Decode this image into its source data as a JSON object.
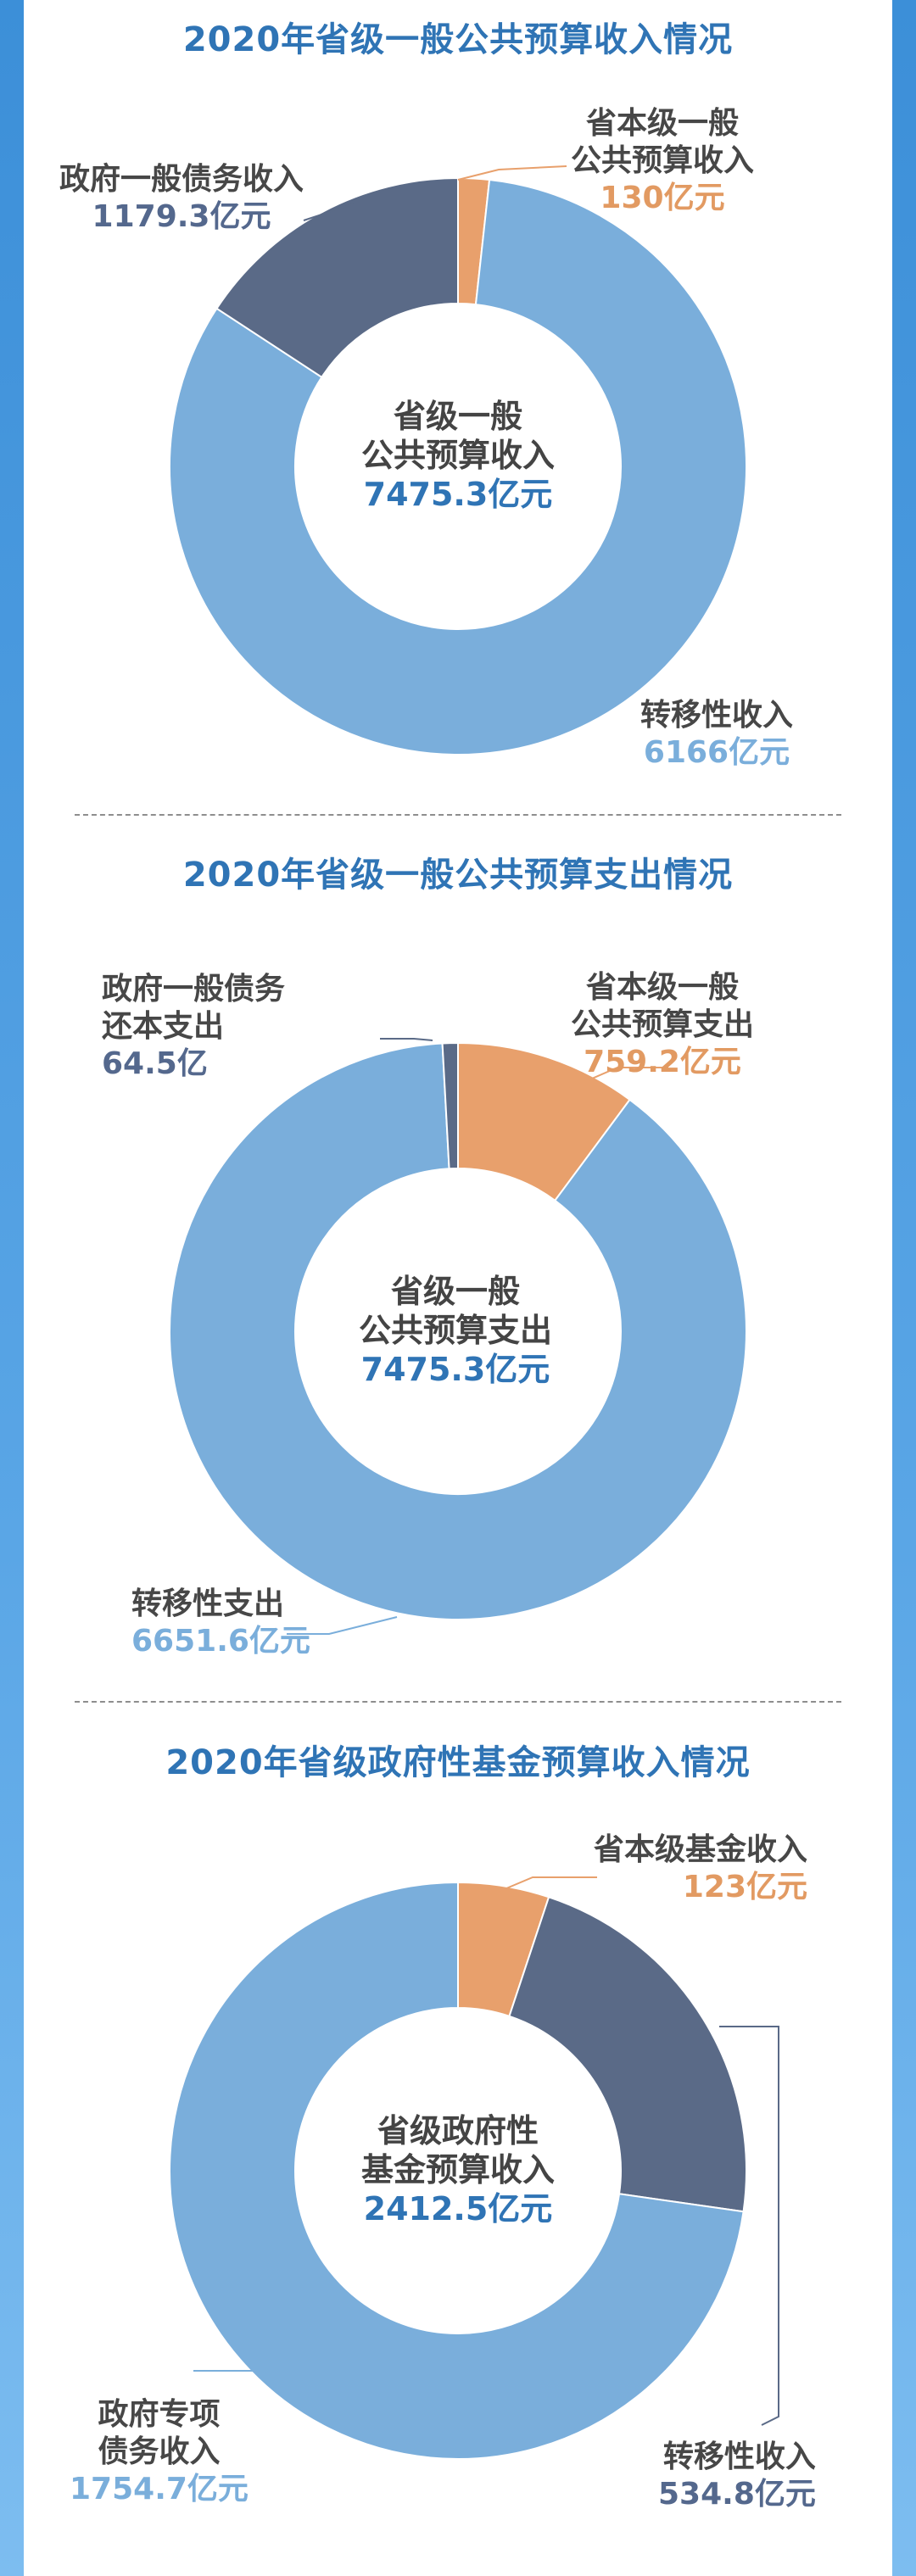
{
  "colors": {
    "province_level": "#e8a06c",
    "debt": "#5a6a87",
    "transfer": "#7aaedb",
    "title": "#2f74b5"
  },
  "chart_data": [
    {
      "type": "pie",
      "variant": "donut",
      "title": "2020年省级一般公共预算收入情况",
      "center_label": [
        "省级一般",
        "公共预算收入"
      ],
      "center_value": "7475.3亿元",
      "total": 7475.3,
      "unit": "亿元",
      "slices": [
        {
          "label": "省本级一般公共预算收入",
          "label_lines": [
            "省本级一般",
            "公共预算收入"
          ],
          "value": 130,
          "value_text": "130亿元",
          "color": "#e8a06c"
        },
        {
          "label": "转移性收入",
          "label_lines": [
            "转移性收入"
          ],
          "value": 6166,
          "value_text": "6166亿元",
          "color": "#7aaedb"
        },
        {
          "label": "政府一般债务收入",
          "label_lines": [
            "政府一般债务收入"
          ],
          "value": 1179.3,
          "value_text": "1179.3亿元",
          "color": "#5a6a87"
        }
      ]
    },
    {
      "type": "pie",
      "variant": "donut",
      "title": "2020年省级一般公共预算支出情况",
      "center_label": [
        "省级一般",
        "公共预算支出"
      ],
      "center_value": "7475.3亿元",
      "total": 7475.3,
      "unit": "亿元",
      "slices": [
        {
          "label": "省本级一般公共预算支出",
          "label_lines": [
            "省本级一般",
            "公共预算支出"
          ],
          "value": 759.2,
          "value_text": "759.2亿元",
          "color": "#e8a06c"
        },
        {
          "label": "转移性支出",
          "label_lines": [
            "转移性支出"
          ],
          "value": 6651.6,
          "value_text": "6651.6亿元",
          "color": "#7aaedb"
        },
        {
          "label": "政府一般债务还本支出",
          "label_lines": [
            "政府一般债务",
            "还本支出"
          ],
          "value": 64.5,
          "value_text": "64.5亿",
          "color": "#5a6a87"
        }
      ]
    },
    {
      "type": "pie",
      "variant": "donut",
      "title": "2020年省级政府性基金预算收入情况",
      "center_label": [
        "省级政府性",
        "基金预算收入"
      ],
      "center_value": "2412.5亿元",
      "total": 2412.5,
      "unit": "亿元",
      "slices": [
        {
          "label": "省本级基金收入",
          "label_lines": [
            "省本级基金收入"
          ],
          "value": 123,
          "value_text": "123亿元",
          "color": "#e8a06c"
        },
        {
          "label": "转移性收入",
          "label_lines": [
            "转移性收入"
          ],
          "value": 534.8,
          "value_text": "534.8亿元",
          "color": "#5a6a87"
        },
        {
          "label": "政府专项债务收入",
          "label_lines": [
            "政府专项",
            "债务收入"
          ],
          "value": 1754.7,
          "value_text": "1754.7亿元",
          "color": "#7aaedb"
        }
      ]
    }
  ]
}
